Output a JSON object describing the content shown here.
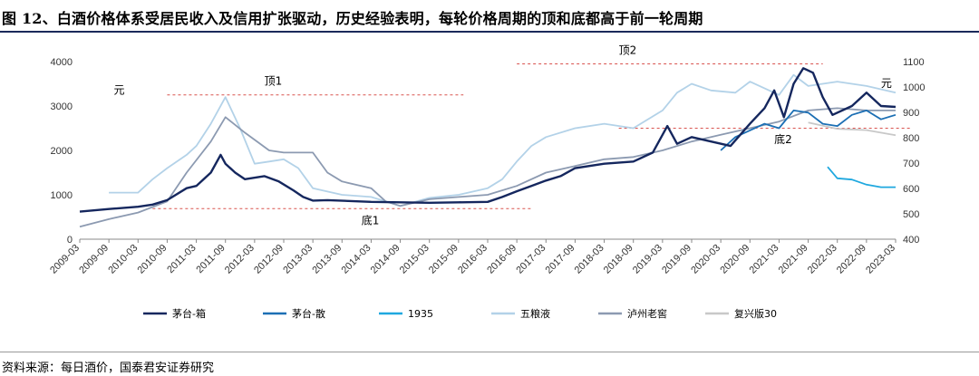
{
  "header": {
    "title": "图 12、白酒价格体系受居民收入及信用扩张驱动，历史经验表明，每轮价格周期的顶和底都高于前一轮周期"
  },
  "footer": {
    "source": "资料来源：每日酒价，国泰君安证券研究"
  },
  "chart_data": {
    "type": "line",
    "x_ticks": [
      "2009-03",
      "2009-09",
      "2010-03",
      "2010-09",
      "2011-03",
      "2011-09",
      "2012-03",
      "2012-09",
      "2013-03",
      "2013-09",
      "2014-03",
      "2014-09",
      "2015-03",
      "2015-09",
      "2016-03",
      "2016-09",
      "2017-03",
      "2017-09",
      "2018-03",
      "2018-09",
      "2019-03",
      "2019-09",
      "2020-03",
      "2020-09",
      "2021-03",
      "2021-09",
      "2022-03",
      "2022-09",
      "2023-03"
    ],
    "left_axis": {
      "range": [
        0,
        4000
      ],
      "ticks": [
        0,
        1000,
        2000,
        3000,
        4000
      ]
    },
    "right_axis": {
      "range": [
        400,
        1100
      ],
      "ticks": [
        400,
        500,
        600,
        700,
        800,
        900,
        1000,
        1100
      ]
    },
    "annotations": [
      {
        "text": "元",
        "x": "2009-10",
        "y_left": 3280,
        "axis": "left"
      },
      {
        "text": "元",
        "x": "2022-12",
        "y_right": 1000,
        "axis": "right"
      },
      {
        "text": "顶1",
        "x": "2012-05",
        "y_left": 3480,
        "axis": "left"
      },
      {
        "text": "底1",
        "x": "2014-01",
        "y_left": 340,
        "axis": "left"
      },
      {
        "text": "顶2",
        "x": "2018-06",
        "y_left": 4170,
        "axis": "left"
      },
      {
        "text": "底2",
        "x": "2021-02",
        "y_left": 2160,
        "axis": "left"
      }
    ],
    "reference_lines": [
      {
        "name": "顶1",
        "from": "2010-09",
        "to": "2015-10",
        "y_left": 3250
      },
      {
        "name": "底1",
        "from": "2010-06",
        "to": "2016-12",
        "y_left": 690
      },
      {
        "name": "顶2",
        "from": "2016-09",
        "to": "2021-12",
        "y_left": 3950
      },
      {
        "name": "底2",
        "from": "2018-06",
        "to": "2023-06",
        "y_left": 2500
      }
    ],
    "series": [
      {
        "name": "茅台-箱",
        "axis": "left",
        "color": "#15275e",
        "points": [
          [
            "2009-03",
            620
          ],
          [
            "2009-09",
            680
          ],
          [
            "2010-03",
            730
          ],
          [
            "2010-06",
            780
          ],
          [
            "2010-09",
            880
          ],
          [
            "2011-01",
            1150
          ],
          [
            "2011-03",
            1200
          ],
          [
            "2011-06",
            1500
          ],
          [
            "2011-08",
            1900
          ],
          [
            "2011-09",
            1700
          ],
          [
            "2011-11",
            1500
          ],
          [
            "2012-01",
            1350
          ],
          [
            "2012-05",
            1420
          ],
          [
            "2012-08",
            1300
          ],
          [
            "2012-11",
            1100
          ],
          [
            "2013-01",
            950
          ],
          [
            "2013-03",
            870
          ],
          [
            "2013-06",
            880
          ],
          [
            "2014-03",
            840
          ],
          [
            "2015-03",
            820
          ],
          [
            "2015-09",
            830
          ],
          [
            "2016-03",
            840
          ],
          [
            "2016-06",
            950
          ],
          [
            "2016-09",
            1080
          ],
          [
            "2016-12",
            1200
          ],
          [
            "2017-03",
            1320
          ],
          [
            "2017-06",
            1420
          ],
          [
            "2017-09",
            1600
          ],
          [
            "2018-03",
            1700
          ],
          [
            "2018-09",
            1750
          ],
          [
            "2019-01",
            1950
          ],
          [
            "2019-04",
            2550
          ],
          [
            "2019-06",
            2150
          ],
          [
            "2019-09",
            2300
          ],
          [
            "2020-01",
            2200
          ],
          [
            "2020-05",
            2100
          ],
          [
            "2020-09",
            2600
          ],
          [
            "2020-12",
            2950
          ],
          [
            "2021-02",
            3350
          ],
          [
            "2021-04",
            2750
          ],
          [
            "2021-06",
            3500
          ],
          [
            "2021-08",
            3850
          ],
          [
            "2021-10",
            3750
          ],
          [
            "2021-12",
            3200
          ],
          [
            "2022-02",
            2800
          ],
          [
            "2022-06",
            3000
          ],
          [
            "2022-09",
            3300
          ],
          [
            "2022-12",
            3000
          ],
          [
            "2023-03",
            2980
          ]
        ]
      },
      {
        "name": "茅台-散",
        "axis": "left",
        "color": "#1c6fb4",
        "points": [
          [
            "2020-03",
            2000
          ],
          [
            "2020-06",
            2300
          ],
          [
            "2020-09",
            2450
          ],
          [
            "2020-12",
            2600
          ],
          [
            "2021-03",
            2500
          ],
          [
            "2021-06",
            2900
          ],
          [
            "2021-09",
            2850
          ],
          [
            "2021-12",
            2600
          ],
          [
            "2022-03",
            2550
          ],
          [
            "2022-06",
            2800
          ],
          [
            "2022-09",
            2900
          ],
          [
            "2022-12",
            2700
          ],
          [
            "2023-03",
            2800
          ]
        ]
      },
      {
        "name": "1935",
        "axis": "right",
        "color": "#1fa8df",
        "points": [
          [
            "2022-01",
            685
          ],
          [
            "2022-03",
            640
          ],
          [
            "2022-06",
            635
          ],
          [
            "2022-09",
            615
          ],
          [
            "2022-12",
            605
          ],
          [
            "2023-03",
            605
          ]
        ]
      },
      {
        "name": "五粮液",
        "axis": "left",
        "color": "#b3d2e8",
        "points": [
          [
            "2009-09",
            1050
          ],
          [
            "2010-03",
            1050
          ],
          [
            "2010-06",
            1350
          ],
          [
            "2010-09",
            1600
          ],
          [
            "2011-01",
            1900
          ],
          [
            "2011-03",
            2100
          ],
          [
            "2011-06",
            2600
          ],
          [
            "2011-09",
            3200
          ],
          [
            "2011-12",
            2500
          ],
          [
            "2012-03",
            1700
          ],
          [
            "2012-06",
            1750
          ],
          [
            "2012-09",
            1800
          ],
          [
            "2012-12",
            1600
          ],
          [
            "2013-03",
            1150
          ],
          [
            "2013-09",
            1000
          ],
          [
            "2014-03",
            950
          ],
          [
            "2014-06",
            850
          ],
          [
            "2014-09",
            750
          ],
          [
            "2015-03",
            930
          ],
          [
            "2015-09",
            1000
          ],
          [
            "2016-03",
            1150
          ],
          [
            "2016-06",
            1350
          ],
          [
            "2016-09",
            1750
          ],
          [
            "2016-12",
            2100
          ],
          [
            "2017-03",
            2300
          ],
          [
            "2017-09",
            2500
          ],
          [
            "2018-03",
            2600
          ],
          [
            "2018-09",
            2500
          ],
          [
            "2019-03",
            2900
          ],
          [
            "2019-06",
            3300
          ],
          [
            "2019-09",
            3500
          ],
          [
            "2020-01",
            3350
          ],
          [
            "2020-06",
            3300
          ],
          [
            "2020-09",
            3550
          ],
          [
            "2021-03",
            3250
          ],
          [
            "2021-06",
            3700
          ],
          [
            "2021-09",
            3450
          ],
          [
            "2021-12",
            3500
          ],
          [
            "2022-03",
            3550
          ],
          [
            "2022-09",
            3450
          ],
          [
            "2023-03",
            3300
          ]
        ]
      },
      {
        "name": "泸州老窖",
        "axis": "left",
        "color": "#8c9ab1",
        "points": [
          [
            "2009-03",
            280
          ],
          [
            "2009-09",
            450
          ],
          [
            "2010-03",
            600
          ],
          [
            "2010-09",
            850
          ],
          [
            "2011-01",
            1500
          ],
          [
            "2011-06",
            2200
          ],
          [
            "2011-09",
            2750
          ],
          [
            "2012-01",
            2400
          ],
          [
            "2012-06",
            2000
          ],
          [
            "2012-09",
            1950
          ],
          [
            "2013-03",
            1950
          ],
          [
            "2013-06",
            1500
          ],
          [
            "2013-09",
            1300
          ],
          [
            "2014-03",
            1150
          ],
          [
            "2014-06",
            850
          ],
          [
            "2014-09",
            750
          ],
          [
            "2015-03",
            900
          ],
          [
            "2015-09",
            950
          ],
          [
            "2016-03",
            1000
          ],
          [
            "2016-09",
            1200
          ],
          [
            "2017-03",
            1500
          ],
          [
            "2017-09",
            1650
          ],
          [
            "2018-03",
            1800
          ],
          [
            "2018-09",
            1850
          ],
          [
            "2019-03",
            2000
          ],
          [
            "2019-09",
            2200
          ],
          [
            "2020-03",
            2350
          ],
          [
            "2020-09",
            2500
          ],
          [
            "2021-03",
            2650
          ],
          [
            "2021-09",
            2900
          ],
          [
            "2022-03",
            2950
          ],
          [
            "2022-09",
            2900
          ],
          [
            "2023-03",
            2900
          ]
        ]
      },
      {
        "name": "复兴版30",
        "axis": "right",
        "color": "#c8c8c8",
        "points": [
          [
            "2021-09",
            860
          ],
          [
            "2022-03",
            835
          ],
          [
            "2022-09",
            830
          ],
          [
            "2023-03",
            810
          ]
        ]
      }
    ]
  }
}
